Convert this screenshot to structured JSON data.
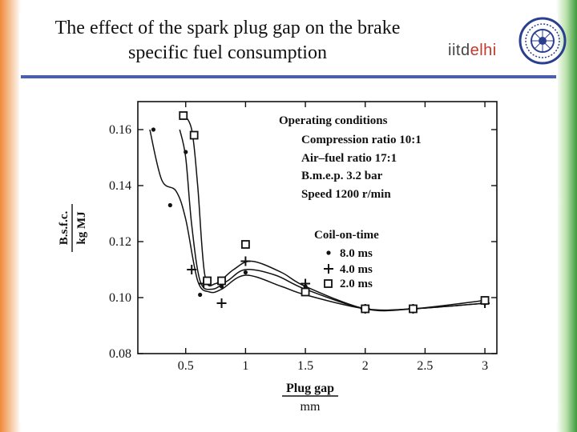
{
  "slide": {
    "title_line1": "The effect of the spark plug gap on the brake",
    "title_line2": "specific fuel consumption",
    "logo_part1": "iitd",
    "logo_part2": "elhi",
    "accent_color": "#4b5fb0"
  },
  "chart_data": {
    "type": "line",
    "xlabel": "Plug gap",
    "xunit": "mm",
    "ylabel": "B.s.f.c.",
    "yunit": "kg MJ",
    "xlim": [
      0.1,
      3.1
    ],
    "ylim": [
      0.08,
      0.17
    ],
    "x_ticks": [
      "0.5",
      "1",
      "1.5",
      "2",
      "2.5",
      "3"
    ],
    "x_tick_values": [
      0.5,
      1,
      1.5,
      2,
      2.5,
      3
    ],
    "y_ticks": [
      "0.08",
      "0.10",
      "0.12",
      "0.14",
      "0.16"
    ],
    "y_tick_values": [
      0.08,
      0.1,
      0.12,
      0.14,
      0.16
    ],
    "conditions_title": "Operating conditions",
    "conditions": [
      "Compression ratio 10:1",
      "Air–fuel ratio 17:1",
      "B.m.e.p. 3.2 bar",
      "Speed 1200 r/min"
    ],
    "legend_title": "Coil-on-time",
    "series": [
      {
        "name": "8.0 ms",
        "marker": "dot",
        "points": [
          [
            0.23,
            0.16
          ],
          [
            0.37,
            0.133
          ],
          [
            0.5,
            0.152
          ],
          [
            0.62,
            0.101
          ],
          [
            0.8,
            0.104
          ],
          [
            1.0,
            0.109
          ],
          [
            1.5,
            0.104
          ],
          [
            2.0,
            0.096
          ],
          [
            2.4,
            0.096
          ],
          [
            3.0,
            0.098
          ]
        ],
        "curve": [
          [
            0.2,
            0.16
          ],
          [
            0.3,
            0.142
          ],
          [
            0.42,
            0.138
          ],
          [
            0.5,
            0.128
          ],
          [
            0.6,
            0.106
          ],
          [
            0.7,
            0.102
          ],
          [
            0.8,
            0.103
          ],
          [
            1.0,
            0.108
          ],
          [
            1.3,
            0.104
          ],
          [
            1.5,
            0.101
          ],
          [
            2.0,
            0.096
          ],
          [
            2.4,
            0.096
          ],
          [
            3.0,
            0.098
          ]
        ]
      },
      {
        "name": "4.0 ms",
        "marker": "plus",
        "points": [
          [
            0.55,
            0.11
          ],
          [
            0.65,
            0.105
          ],
          [
            0.8,
            0.098
          ],
          [
            1.0,
            0.113
          ],
          [
            1.5,
            0.105
          ],
          [
            2.0,
            0.096
          ],
          [
            2.4,
            0.096
          ],
          [
            3.0,
            0.098
          ]
        ],
        "curve": [
          [
            0.45,
            0.16
          ],
          [
            0.5,
            0.15
          ],
          [
            0.55,
            0.126
          ],
          [
            0.62,
            0.106
          ],
          [
            0.72,
            0.103
          ],
          [
            0.85,
            0.106
          ],
          [
            1.0,
            0.11
          ],
          [
            1.25,
            0.108
          ],
          [
            1.5,
            0.103
          ],
          [
            2.0,
            0.096
          ],
          [
            2.4,
            0.096
          ],
          [
            3.0,
            0.098
          ]
        ]
      },
      {
        "name": "2.0 ms",
        "marker": "square",
        "points": [
          [
            0.48,
            0.165
          ],
          [
            0.57,
            0.158
          ],
          [
            0.68,
            0.106
          ],
          [
            0.8,
            0.106
          ],
          [
            1.0,
            0.119
          ],
          [
            1.5,
            0.102
          ],
          [
            2.0,
            0.096
          ],
          [
            2.4,
            0.096
          ],
          [
            3.0,
            0.099
          ]
        ],
        "curve": [
          [
            0.47,
            0.166
          ],
          [
            0.55,
            0.16
          ],
          [
            0.6,
            0.14
          ],
          [
            0.66,
            0.108
          ],
          [
            0.75,
            0.105
          ],
          [
            0.9,
            0.11
          ],
          [
            1.05,
            0.113
          ],
          [
            1.3,
            0.109
          ],
          [
            1.5,
            0.104
          ],
          [
            2.0,
            0.096
          ],
          [
            2.4,
            0.096
          ],
          [
            3.0,
            0.099
          ]
        ]
      }
    ]
  }
}
